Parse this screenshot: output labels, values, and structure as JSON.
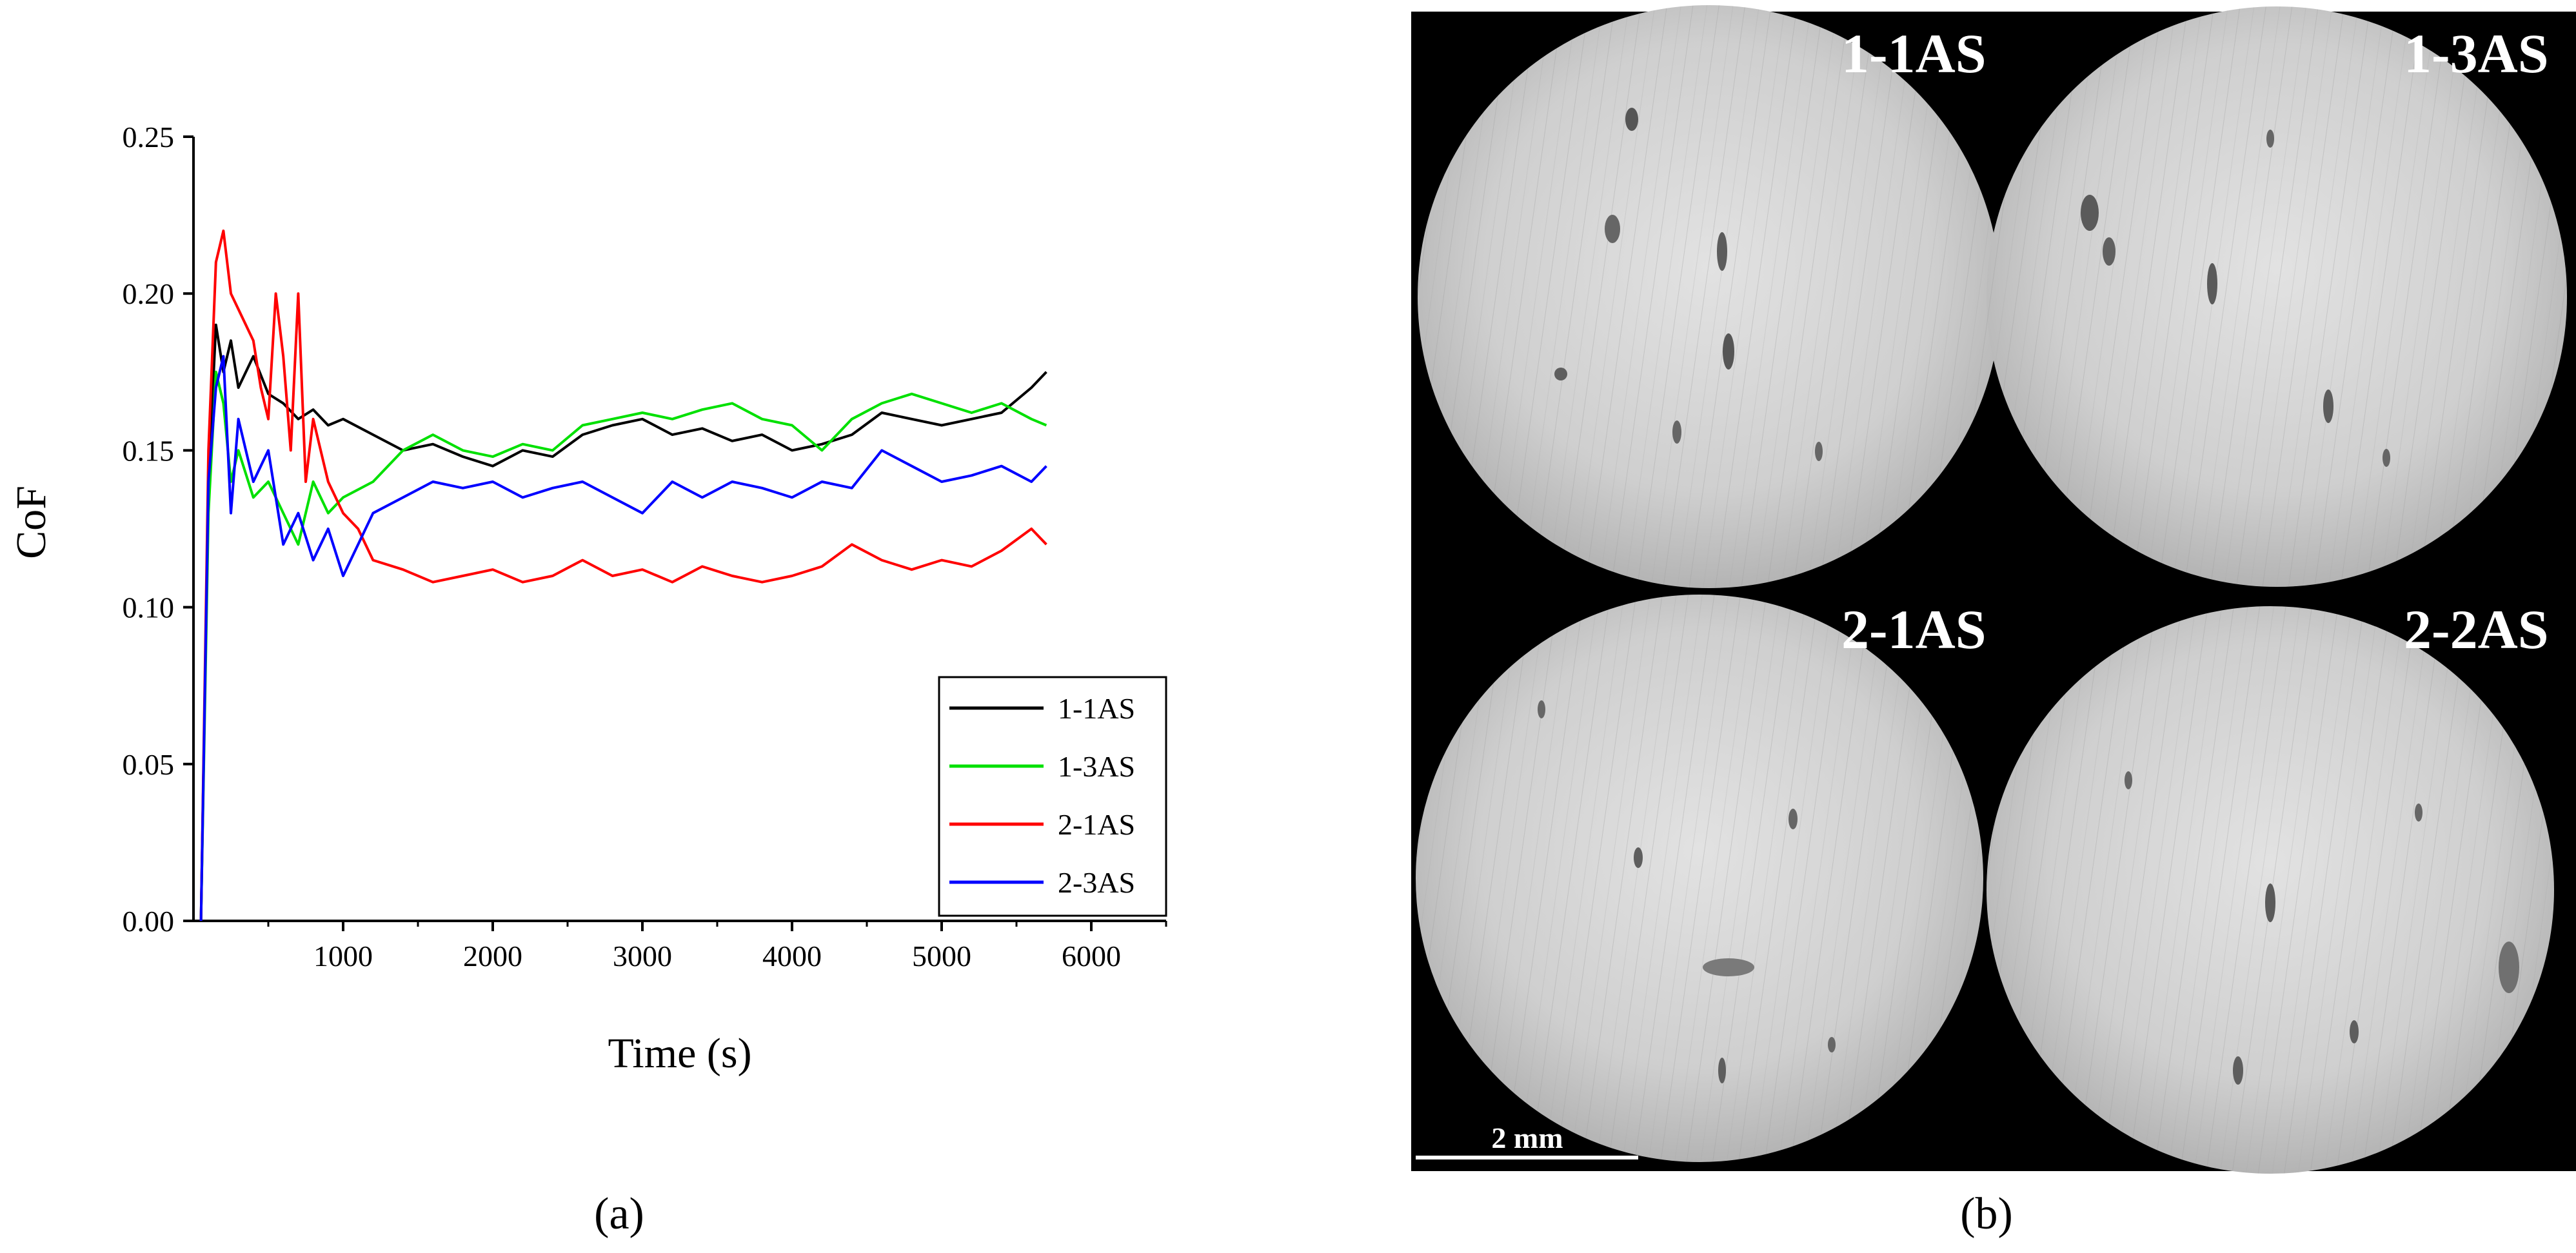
{
  "chart_data": {
    "type": "line",
    "xlabel": "Time (s)",
    "ylabel": "CoF",
    "xlim": [
      0,
      6500
    ],
    "ylim": [
      0,
      0.25
    ],
    "xticks": [
      1000,
      2000,
      3000,
      4000,
      5000,
      6000
    ],
    "yticks": [
      "0.00",
      "0.05",
      "0.10",
      "0.15",
      "0.20",
      "0.25"
    ],
    "grid": false,
    "legend_position": "bottom-right",
    "series": [
      {
        "name": "1-1AS",
        "color": "#000000",
        "x": [
          50,
          100,
          150,
          200,
          250,
          300,
          400,
          500,
          600,
          700,
          800,
          900,
          1000,
          1200,
          1400,
          1600,
          1800,
          2000,
          2200,
          2400,
          2600,
          2800,
          3000,
          3200,
          3400,
          3600,
          3800,
          4000,
          4200,
          4400,
          4600,
          4800,
          5000,
          5200,
          5400,
          5600,
          5700
        ],
        "y": [
          0.0,
          0.14,
          0.19,
          0.175,
          0.185,
          0.17,
          0.18,
          0.168,
          0.165,
          0.16,
          0.163,
          0.158,
          0.16,
          0.155,
          0.15,
          0.152,
          0.148,
          0.145,
          0.15,
          0.148,
          0.155,
          0.158,
          0.16,
          0.155,
          0.157,
          0.153,
          0.155,
          0.15,
          0.152,
          0.155,
          0.162,
          0.16,
          0.158,
          0.16,
          0.162,
          0.17,
          0.175
        ]
      },
      {
        "name": "1-3AS",
        "color": "#00e000",
        "x": [
          50,
          100,
          150,
          200,
          250,
          300,
          400,
          500,
          600,
          700,
          800,
          900,
          1000,
          1200,
          1400,
          1600,
          1800,
          2000,
          2200,
          2400,
          2600,
          2800,
          3000,
          3200,
          3400,
          3600,
          3800,
          4000,
          4200,
          4400,
          4600,
          4800,
          5000,
          5200,
          5400,
          5600,
          5700
        ],
        "y": [
          0.0,
          0.13,
          0.175,
          0.165,
          0.14,
          0.15,
          0.135,
          0.14,
          0.13,
          0.12,
          0.14,
          0.13,
          0.135,
          0.14,
          0.15,
          0.155,
          0.15,
          0.148,
          0.152,
          0.15,
          0.158,
          0.16,
          0.162,
          0.16,
          0.163,
          0.165,
          0.16,
          0.158,
          0.15,
          0.16,
          0.165,
          0.168,
          0.165,
          0.162,
          0.165,
          0.16,
          0.158
        ]
      },
      {
        "name": "2-1AS",
        "color": "#ff0000",
        "x": [
          50,
          100,
          150,
          200,
          250,
          300,
          400,
          450,
          500,
          550,
          600,
          650,
          700,
          750,
          800,
          900,
          1000,
          1100,
          1200,
          1400,
          1600,
          1800,
          2000,
          2200,
          2400,
          2600,
          2800,
          3000,
          3200,
          3400,
          3600,
          3800,
          4000,
          4200,
          4400,
          4600,
          4800,
          5000,
          5200,
          5400,
          5600,
          5700
        ],
        "y": [
          0.0,
          0.15,
          0.21,
          0.22,
          0.2,
          0.195,
          0.185,
          0.17,
          0.16,
          0.2,
          0.18,
          0.15,
          0.2,
          0.14,
          0.16,
          0.14,
          0.13,
          0.125,
          0.115,
          0.112,
          0.108,
          0.11,
          0.112,
          0.108,
          0.11,
          0.115,
          0.11,
          0.112,
          0.108,
          0.113,
          0.11,
          0.108,
          0.11,
          0.113,
          0.12,
          0.115,
          0.112,
          0.115,
          0.113,
          0.118,
          0.125,
          0.12
        ]
      },
      {
        "name": "2-3AS",
        "color": "#0000ff",
        "x": [
          50,
          100,
          150,
          200,
          250,
          300,
          400,
          500,
          600,
          700,
          800,
          900,
          1000,
          1200,
          1400,
          1600,
          1800,
          2000,
          2200,
          2400,
          2600,
          2800,
          3000,
          3200,
          3400,
          3600,
          3800,
          4000,
          4200,
          4400,
          4600,
          4800,
          5000,
          5200,
          5400,
          5600,
          5700
        ],
        "y": [
          0.0,
          0.14,
          0.17,
          0.18,
          0.13,
          0.16,
          0.14,
          0.15,
          0.12,
          0.13,
          0.115,
          0.125,
          0.11,
          0.13,
          0.135,
          0.14,
          0.138,
          0.14,
          0.135,
          0.138,
          0.14,
          0.135,
          0.13,
          0.14,
          0.135,
          0.14,
          0.138,
          0.135,
          0.14,
          0.138,
          0.15,
          0.145,
          0.14,
          0.142,
          0.145,
          0.14,
          0.145
        ]
      }
    ]
  },
  "panels": {
    "a_label": "(a)",
    "b_label": "(b)"
  },
  "micrograph": {
    "samples": [
      "1-1AS",
      "1-3AS",
      "2-1AS",
      "2-2AS"
    ],
    "scale_bar": "2 mm"
  }
}
